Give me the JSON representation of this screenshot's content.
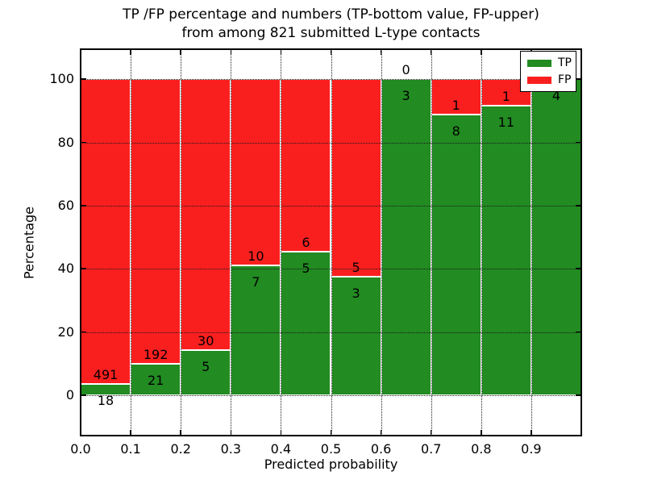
{
  "title": {
    "line1": "TP /FP percentage and numbers (TP-bottom value, FP-upper)",
    "line2": "from among 821 submitted L-type contacts"
  },
  "chart_data": {
    "type": "bar",
    "subtype": "stacked-percentage-histogram",
    "title": "TP /FP percentage and numbers (TP-bottom value, FP-upper) from among 821 submitted L-type contacts",
    "xlabel": "Predicted probability",
    "ylabel": "Percentage",
    "xlim": [
      0.0,
      1.0
    ],
    "ylim": [
      -12.8,
      109.5
    ],
    "bin_width": 0.1,
    "bin_starts": [
      0.0,
      0.1,
      0.2,
      0.3,
      0.4,
      0.5,
      0.6,
      0.7,
      0.8,
      0.9
    ],
    "x_tick_labels": [
      "0.0",
      "0.1",
      "0.2",
      "0.3",
      "0.4",
      "0.5",
      "0.6",
      "0.7",
      "0.8",
      "0.9"
    ],
    "y_ticks": [
      0,
      20,
      40,
      60,
      80,
      100
    ],
    "y_tick_labels": [
      "0",
      "20",
      "40",
      "60",
      "80",
      "100"
    ],
    "grid": true,
    "grid_style": "dotted",
    "total_contacts": 821,
    "series": [
      {
        "name": "TP",
        "color": "#228b22",
        "counts": [
          18,
          21,
          5,
          7,
          5,
          3,
          3,
          8,
          11,
          4
        ]
      },
      {
        "name": "FP",
        "color": "#fa1f1f",
        "counts": [
          491,
          192,
          30,
          10,
          6,
          5,
          0,
          1,
          1,
          0
        ]
      }
    ],
    "tp_percent": [
      3.54,
      9.86,
      14.29,
      41.18,
      45.45,
      37.5,
      100.0,
      88.89,
      91.67,
      100.0
    ],
    "legend": {
      "position": "upper-right",
      "entries": [
        {
          "label": "TP",
          "color": "#228b22"
        },
        {
          "label": "FP",
          "color": "#fa1f1f"
        }
      ]
    }
  }
}
